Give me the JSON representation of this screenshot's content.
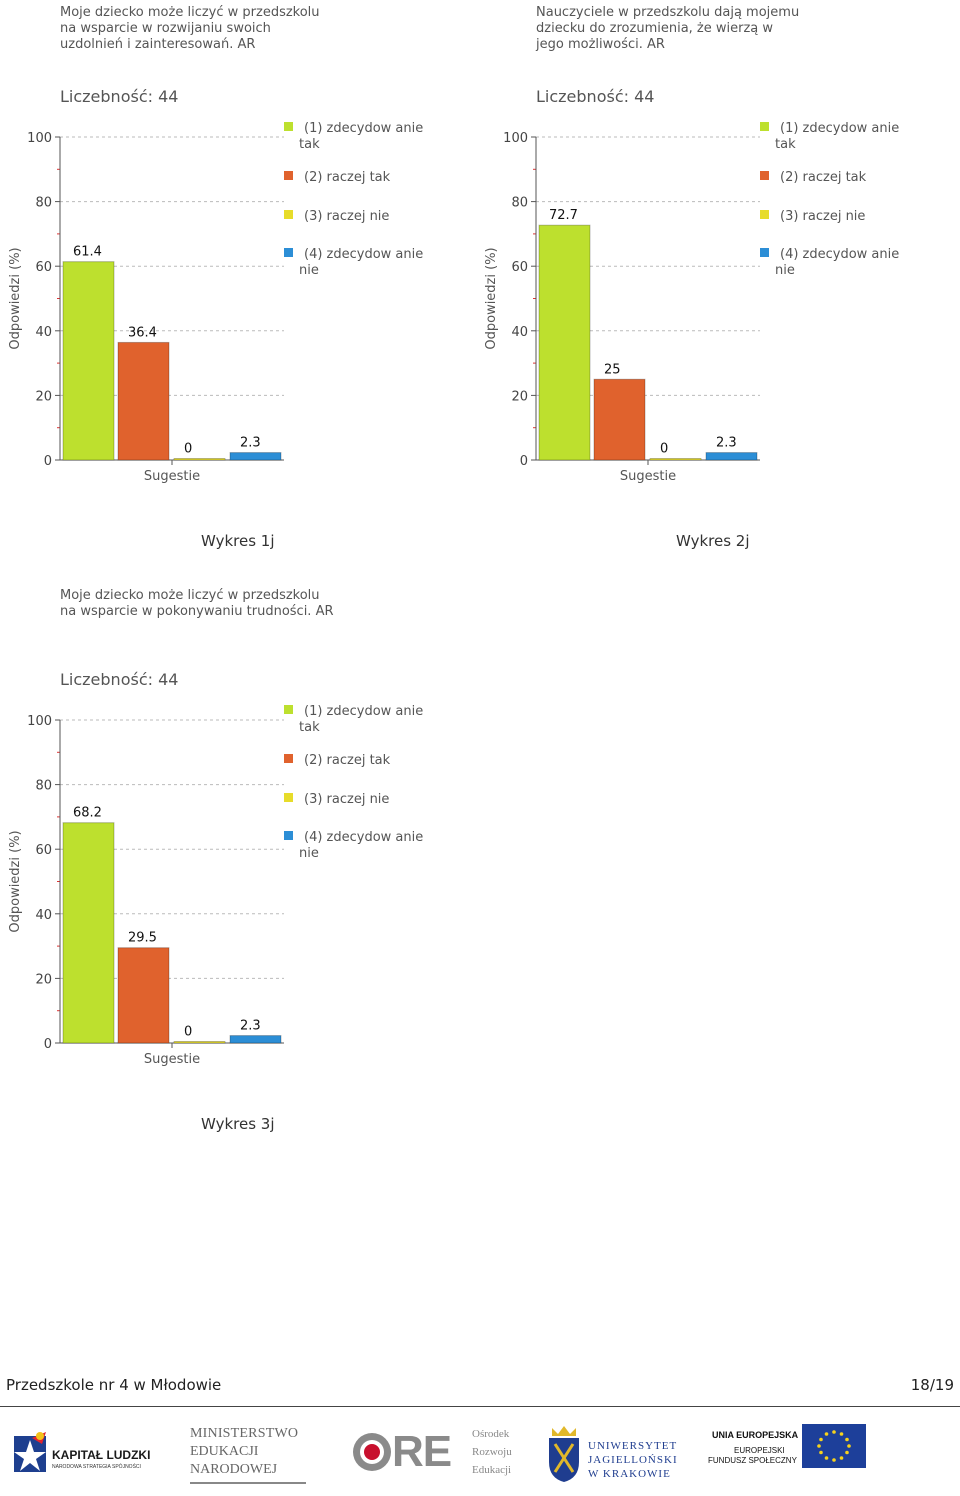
{
  "charts": [
    {
      "id": "c1",
      "title_lines": [
        "Moje dziecko może liczyć w przedszkolu",
        "na wsparcie w rozwijaniu swoich",
        "uzdolnień i zainteresowań. AR"
      ],
      "count_label": "Liczebność: 44",
      "caption": "Wykres 1j"
    },
    {
      "id": "c2",
      "title_lines": [
        "Nauczyciele w przedszkolu dają mojemu",
        "dziecku do  zrozumienia, że wierzą w",
        "jego możliwości. AR"
      ],
      "count_label": "Liczebność: 44",
      "caption": "Wykres 2j"
    },
    {
      "id": "c3",
      "title_lines": [
        "Moje dziecko może liczyć w przedszkolu",
        "na wsparcie w pokonywaniu trudności. AR"
      ],
      "count_label": "Liczebność: 44",
      "caption": "Wykres 3j"
    }
  ],
  "chart_data": [
    {
      "type": "bar",
      "title": "Moje dziecko może liczyć w przedszkolu na wsparcie w rozwijaniu swoich uzdolnień i zainteresowań. AR",
      "xlabel": "Sugestie",
      "ylabel": "Odpowiedzi (%)",
      "ylim": [
        0,
        100
      ],
      "yticks": [
        0,
        20,
        40,
        60,
        80,
        100
      ],
      "grid": true,
      "legend_position": "right",
      "categories": [
        "(1) zdecydowanie tak",
        "(2) raczej tak",
        "(3) raczej nie",
        "(4) zdecydowanie nie"
      ],
      "values": [
        61.4,
        36.4,
        0,
        2.3
      ],
      "value_labels": [
        "61.4",
        "36.4",
        "0",
        "2.3"
      ],
      "colors": [
        "#bde02e",
        "#e0622d",
        "#e7dc2a",
        "#2c8ed6"
      ]
    },
    {
      "type": "bar",
      "title": "Nauczyciele w przedszkolu dają mojemu dziecku do zrozumienia, że wierzą w jego możliwości. AR",
      "xlabel": "Sugestie",
      "ylabel": "Odpowiedzi (%)",
      "ylim": [
        0,
        100
      ],
      "yticks": [
        0,
        20,
        40,
        60,
        80,
        100
      ],
      "grid": true,
      "legend_position": "right",
      "categories": [
        "(1) zdecydowanie tak",
        "(2) raczej tak",
        "(3) raczej nie",
        "(4) zdecydowanie nie"
      ],
      "values": [
        72.7,
        25,
        0,
        2.3
      ],
      "value_labels": [
        "72.7",
        "25",
        "0",
        "2.3"
      ],
      "colors": [
        "#bde02e",
        "#e0622d",
        "#e7dc2a",
        "#2c8ed6"
      ]
    },
    {
      "type": "bar",
      "title": "Moje dziecko może liczyć w przedszkolu na wsparcie w pokonywaniu trudności. AR",
      "xlabel": "Sugestie",
      "ylabel": "Odpowiedzi (%)",
      "ylim": [
        0,
        100
      ],
      "yticks": [
        0,
        20,
        40,
        60,
        80,
        100
      ],
      "grid": true,
      "legend_position": "right",
      "categories": [
        "(1) zdecydowanie tak",
        "(2) raczej tak",
        "(3) raczej nie",
        "(4) zdecydowanie nie"
      ],
      "values": [
        68.2,
        29.5,
        0,
        2.3
      ],
      "value_labels": [
        "68.2",
        "29.5",
        "0",
        "2.3"
      ],
      "colors": [
        "#bde02e",
        "#e0622d",
        "#e7dc2a",
        "#2c8ed6"
      ]
    }
  ],
  "legend_lines": [
    [
      "(1) zdecydow anie",
      "tak"
    ],
    [
      "(2) raczej tak"
    ],
    [
      "(3) raczej nie"
    ],
    [
      "(4) zdecydow anie",
      "nie"
    ]
  ],
  "footer": {
    "left": "Przedszkole nr 4 w Młodowie",
    "right": "18/19"
  },
  "logos": {
    "kapital": {
      "title": "KAPITAŁ LUDZKI",
      "sub": "NARODOWA STRATEGIA SPÓJNOŚCI"
    },
    "men": {
      "lines": [
        "MINISTERSTWO",
        "EDUKACJI",
        "NARODOWEJ"
      ]
    },
    "ore": {
      "mark": "ORE",
      "lines": [
        "Ośrodek",
        "Rozwoju",
        "Edukacji"
      ]
    },
    "uj": {
      "lines": [
        "UNIWERSYTET",
        "JAGIELLOŃSKI",
        "W KRAKOWIE"
      ]
    },
    "ue": {
      "lines": [
        "UNIA EUROPEJSKA",
        "EUROPEJSKI",
        "FUNDUSZ SPOŁECZNY"
      ]
    }
  }
}
